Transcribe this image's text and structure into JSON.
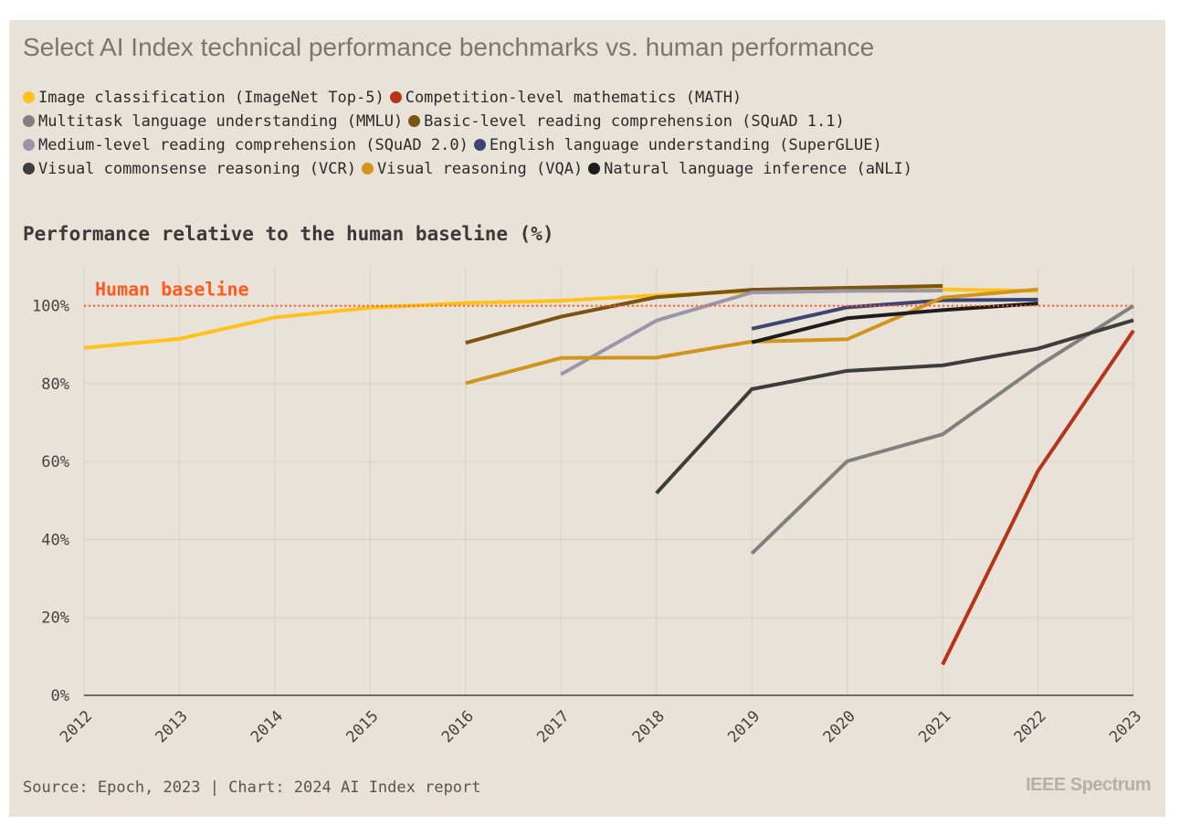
{
  "title": "Select AI Index technical performance benchmarks vs. human performance",
  "legend_rows": [
    [
      0,
      1
    ],
    [
      2,
      3
    ],
    [
      4,
      5
    ],
    [
      6,
      7,
      8
    ]
  ],
  "chart_data": {
    "type": "line",
    "title": "Select AI Index technical performance benchmarks vs. human performance",
    "subtitle": "Performance relative to the human baseline (%)",
    "x_ticks": [
      "2012",
      "2013",
      "2014",
      "2015",
      "2016",
      "2017",
      "2018",
      "2019",
      "2020",
      "2021",
      "2022",
      "2023"
    ],
    "y_ticks": [
      "0%",
      "20%",
      "40%",
      "60%",
      "80%",
      "100%"
    ],
    "xlim": [
      2012,
      2023
    ],
    "ylim": [
      0,
      110
    ],
    "grid": true,
    "baseline": {
      "label": "Human baseline",
      "value": 100,
      "color": "#ff5a1f"
    },
    "series": [
      {
        "name": "Image classification (ImageNet Top-5)",
        "color": "#ffc21a",
        "x": [
          2012,
          2013,
          2014,
          2015,
          2016,
          2017,
          2018,
          2019,
          2020,
          2021,
          2022
        ],
        "y": [
          89.2,
          91.5,
          97.0,
          99.5,
          100.7,
          101.3,
          102.7,
          103.7,
          104.0,
          104.2,
          103.8
        ]
      },
      {
        "name": "Competition-level mathematics (MATH)",
        "color": "#b5341a",
        "x": [
          2021,
          2022,
          2023
        ],
        "y": [
          7.9,
          57.6,
          93.6
        ]
      },
      {
        "name": "Multitask language understanding (MMLU)",
        "color": "#808080",
        "x": [
          2019,
          2020,
          2021,
          2022,
          2023
        ],
        "y": [
          36.4,
          60.1,
          67.0,
          84.5,
          100.0
        ]
      },
      {
        "name": "Basic-level reading comprehension (SQuAD 1.1)",
        "color": "#7a5410",
        "x": [
          2016,
          2017,
          2018,
          2019,
          2020,
          2021
        ],
        "y": [
          90.5,
          97.2,
          102.2,
          104.1,
          104.6,
          105.1
        ]
      },
      {
        "name": "Medium-level reading comprehension (SQuAD 2.0)",
        "color": "#9896a8",
        "x": [
          2017,
          2018,
          2019,
          2020,
          2021
        ],
        "y": [
          82.4,
          96.2,
          103.4,
          103.8,
          103.9
        ]
      },
      {
        "name": "English language understanding (SuperGLUE)",
        "color": "#3d4472",
        "x": [
          2019,
          2020,
          2021,
          2022
        ],
        "y": [
          94.1,
          99.6,
          101.4,
          101.6
        ]
      },
      {
        "name": "Visual commonsense reasoning (VCR)",
        "color": "#3d3d3d",
        "x": [
          2018,
          2019,
          2020,
          2021,
          2022,
          2023
        ],
        "y": [
          51.9,
          78.6,
          83.3,
          84.7,
          89.0,
          96.3
        ]
      },
      {
        "name": "Visual reasoning (VQA)",
        "color": "#d0951c",
        "x": [
          2016,
          2017,
          2018,
          2019,
          2020,
          2021,
          2022
        ],
        "y": [
          80.1,
          86.6,
          86.7,
          90.8,
          91.4,
          102.1,
          104.2
        ]
      },
      {
        "name": "Natural language inference (aNLI)",
        "color": "#1c1c1c",
        "x": [
          2019,
          2020,
          2021,
          2022
        ],
        "y": [
          90.6,
          96.8,
          98.9,
          100.6
        ]
      }
    ]
  },
  "footer": {
    "source": "Source: Epoch, 2023 | Chart: 2024 AI Index report",
    "brand": "IEEE Spectrum"
  }
}
